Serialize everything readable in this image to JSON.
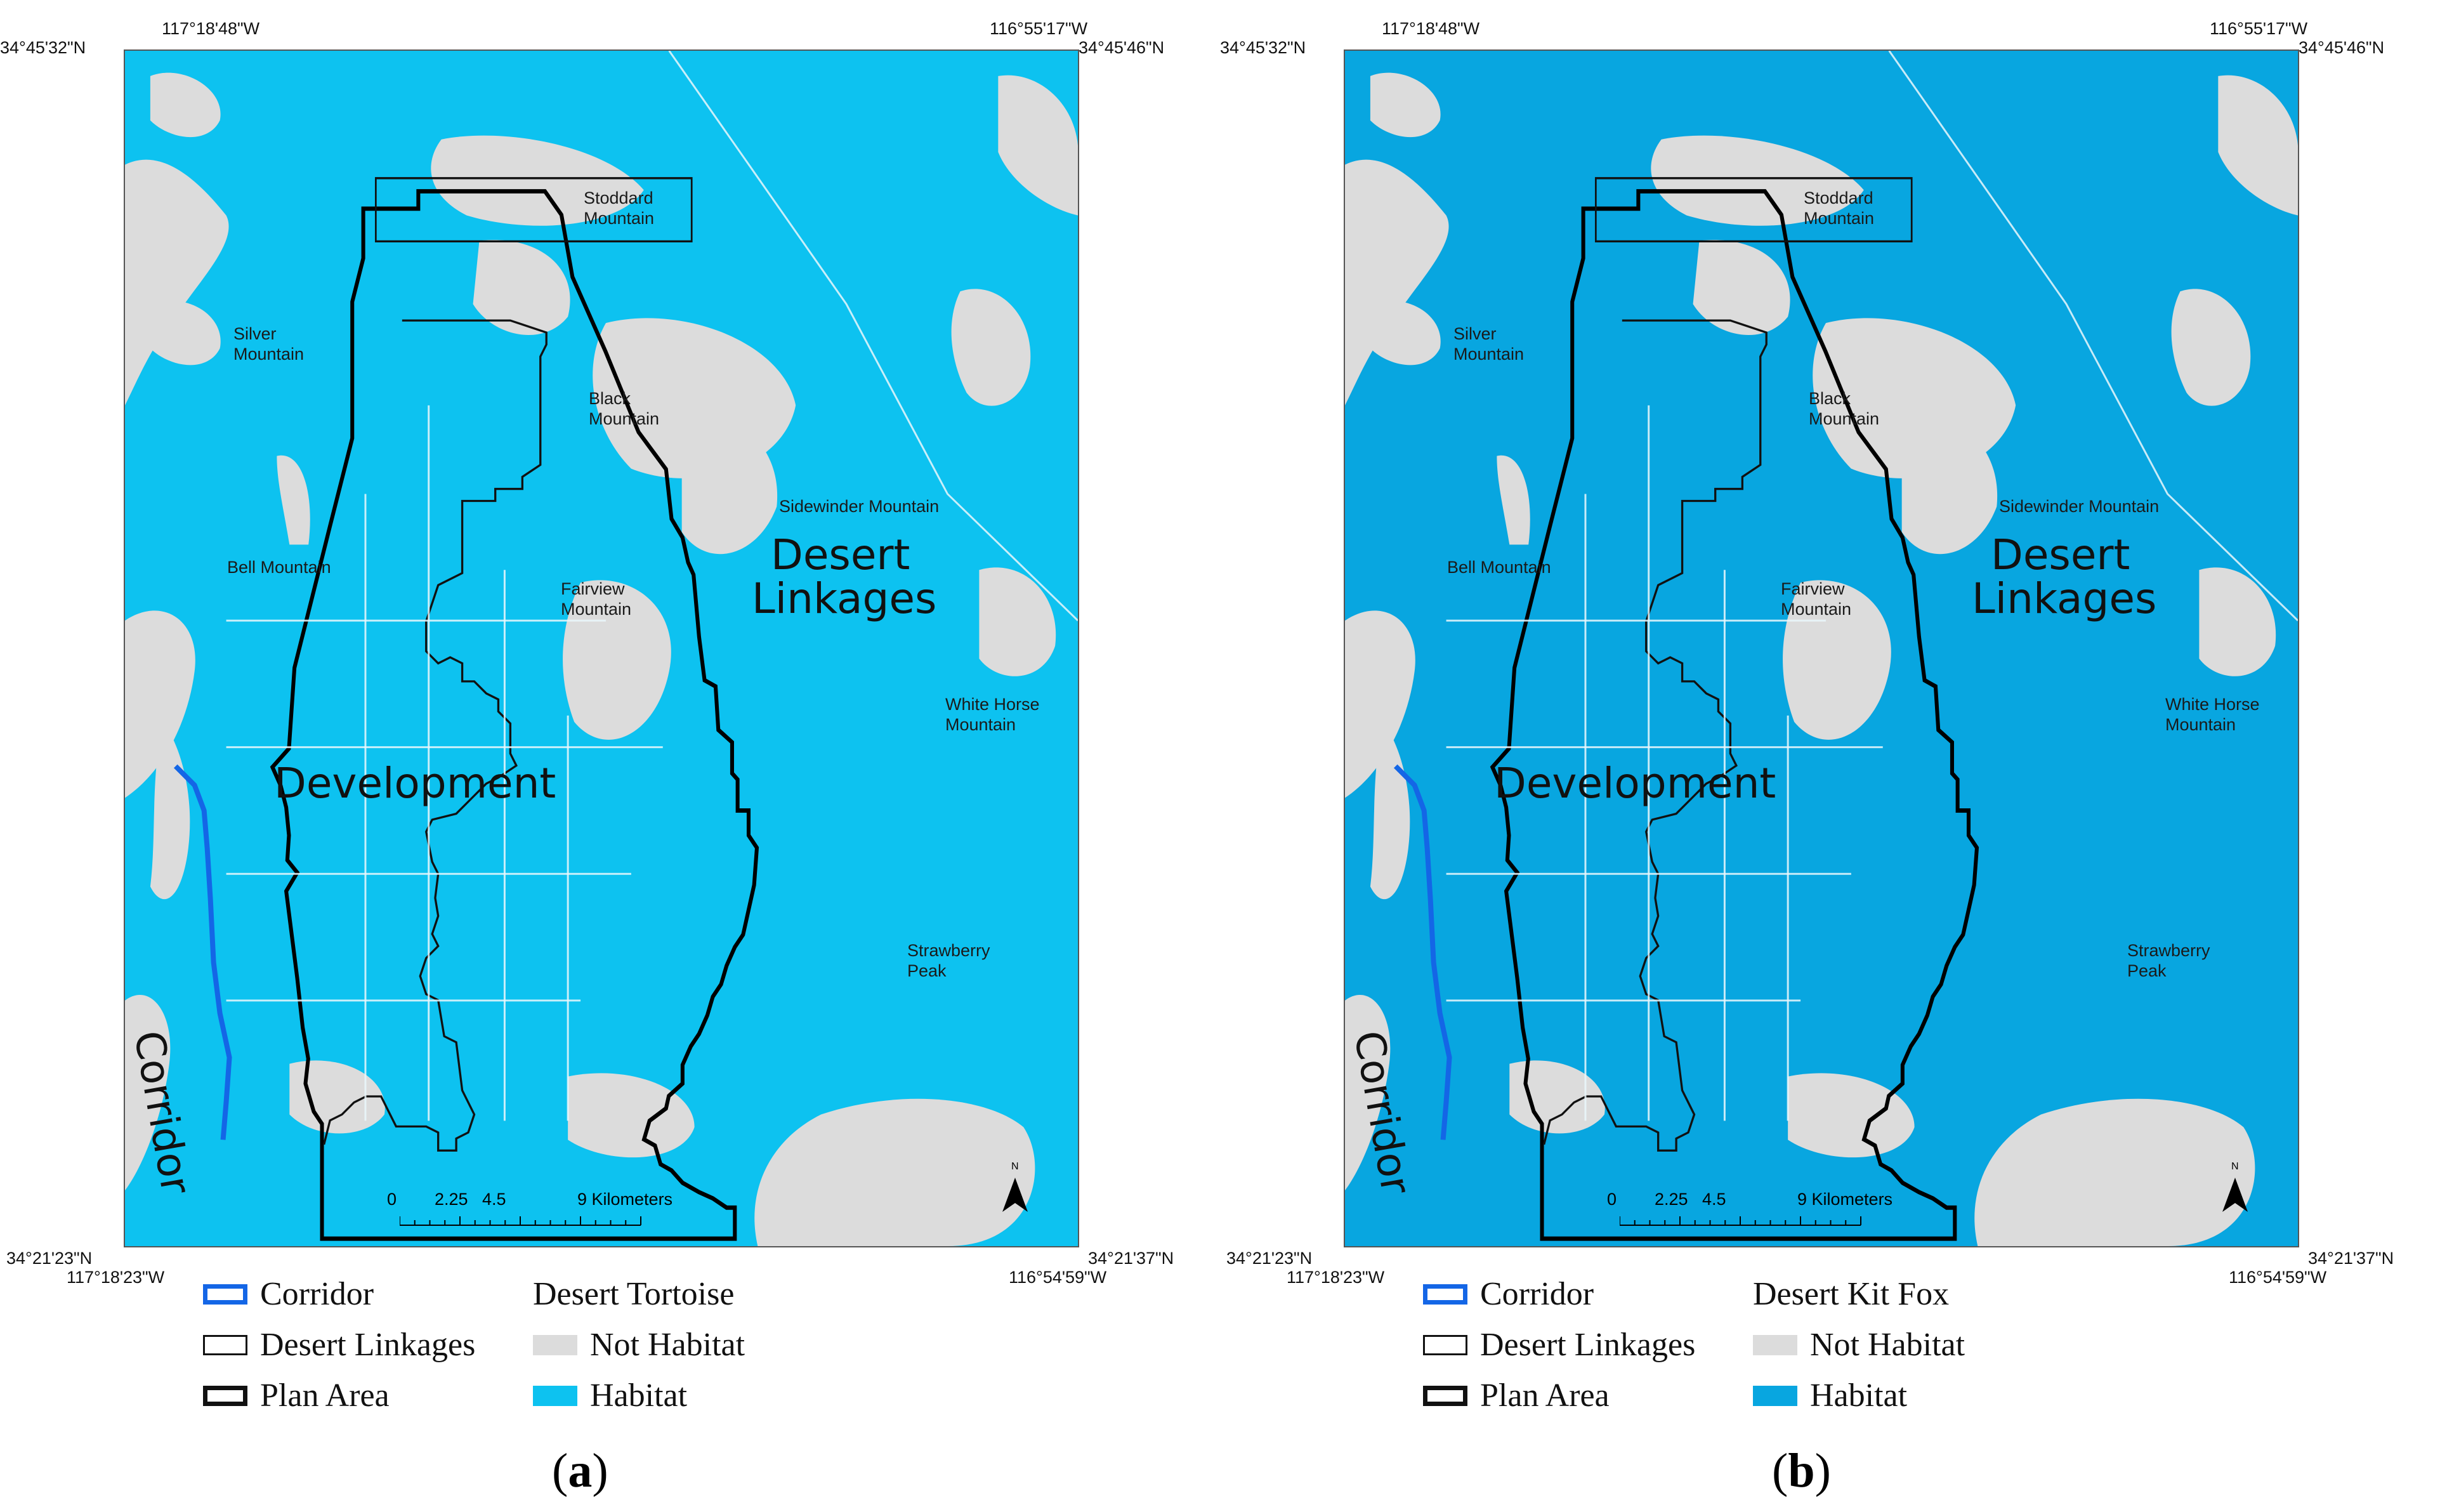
{
  "panels": [
    {
      "coords": {
        "top_left_lon": "117°18'48\"W",
        "top_left_lat": "34°45'32\"N",
        "top_right_lon": "116°55'17\"W",
        "top_right_lat": "34°45'46\"N",
        "bottom_left_lat": "34°21'23\"N",
        "bottom_left_lon": "117°18'23\"W",
        "bottom_right_lat": "34°21'37\"N",
        "bottom_right_lon": "116°54'59\"W"
      },
      "places": {
        "stoddard": [
          "Stoddard",
          "Mountain"
        ],
        "silver": [
          "Silver",
          "Mountain"
        ],
        "black": [
          "Black",
          "Mountain"
        ],
        "sidewinder": [
          "Sidewinder Mountain"
        ],
        "bell": [
          "Bell Mountain"
        ],
        "fairview": [
          "Fairview",
          "Mountain"
        ],
        "whitehorse": [
          "White Horse",
          "Mountain"
        ],
        "strawberry": [
          "Strawberry",
          "Peak"
        ]
      },
      "regions": {
        "desert_linkages": [
          "Desert",
          "Linkages"
        ],
        "development": "Development",
        "corridor": "Corridor"
      },
      "scale": {
        "ticks": [
          "0",
          "2.25",
          "4.5",
          "9 Kilometers"
        ]
      },
      "north_label": "N",
      "legend": {
        "corridor": "Corridor",
        "desert_linkages": "Desert Linkages",
        "plan_area": "Plan Area",
        "species_title": "Desert Tortoise",
        "not_habitat": "Not Habitat",
        "habitat": "Habitat"
      },
      "caption": {
        "open": "(",
        "letter": "a",
        "close": ")"
      },
      "colors": {
        "habitat": "#0dc2f0",
        "not_habitat": "#dcdcdc",
        "corridor": "#1466e6"
      }
    },
    {
      "coords": {
        "top_left_lon": "117°18'48\"W",
        "top_left_lat": "34°45'32\"N",
        "top_right_lon": "116°55'17\"W",
        "top_right_lat": "34°45'46\"N",
        "bottom_left_lat": "34°21'23\"N",
        "bottom_left_lon": "117°18'23\"W",
        "bottom_right_lat": "34°21'37\"N",
        "bottom_right_lon": "116°54'59\"W"
      },
      "places": {
        "stoddard": [
          "Stoddard",
          "Mountain"
        ],
        "silver": [
          "Silver",
          "Mountain"
        ],
        "black": [
          "Black",
          "Mountain"
        ],
        "sidewinder": [
          "Sidewinder Mountain"
        ],
        "bell": [
          "Bell Mountain"
        ],
        "fairview": [
          "Fairview",
          "Mountain"
        ],
        "whitehorse": [
          "White Horse",
          "Mountain"
        ],
        "strawberry": [
          "Strawberry",
          "Peak"
        ]
      },
      "regions": {
        "desert_linkages": [
          "Desert",
          "Linkages"
        ],
        "development": "Development",
        "corridor": "Corridor"
      },
      "scale": {
        "ticks": [
          "0",
          "2.25",
          "4.5",
          "9 Kilometers"
        ]
      },
      "north_label": "N",
      "legend": {
        "corridor": "Corridor",
        "desert_linkages": "Desert Linkages",
        "plan_area": "Plan Area",
        "species_title": "Desert Kit Fox",
        "not_habitat": "Not Habitat",
        "habitat": "Habitat"
      },
      "caption": {
        "open": "(",
        "letter": "b",
        "close": ")"
      },
      "colors": {
        "habitat": "#08a6e0",
        "not_habitat": "#dcdcdc",
        "corridor": "#1466e6"
      }
    }
  ]
}
